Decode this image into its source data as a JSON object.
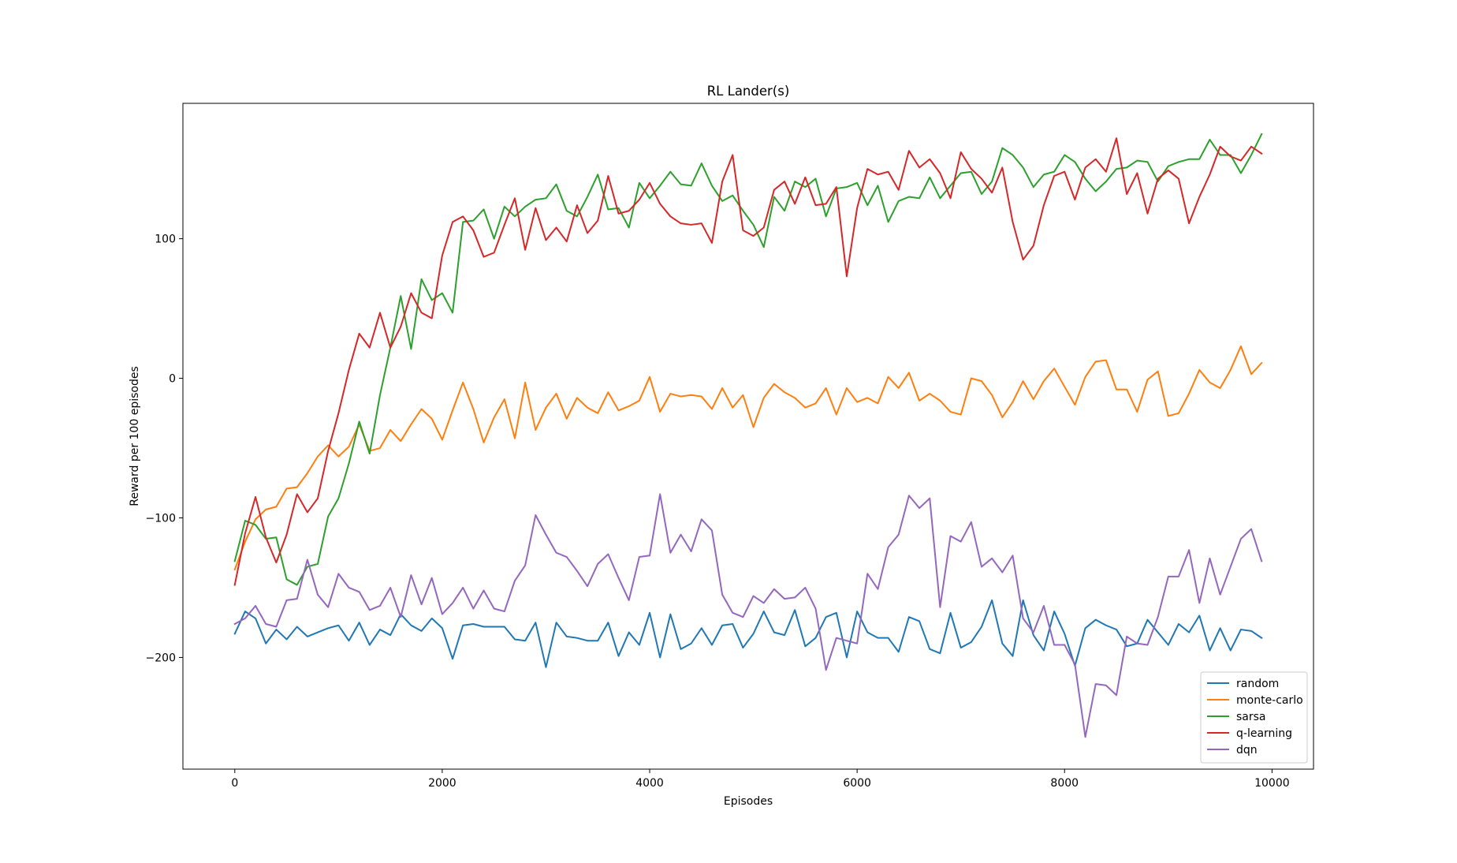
{
  "chart_data": {
    "type": "line",
    "title": "RL Lander(s)",
    "xlabel": "Episodes",
    "ylabel": "Reward per 100 episodes",
    "xlim": [
      -500,
      10400
    ],
    "ylim": [
      -280,
      197
    ],
    "xticks": [
      0,
      2000,
      4000,
      6000,
      8000,
      10000
    ],
    "yticks": [
      -200,
      -100,
      0,
      100
    ],
    "grid": false,
    "legend_position": "bottom-right",
    "x": [
      0,
      100,
      200,
      300,
      400,
      500,
      600,
      700,
      800,
      900,
      1000,
      1100,
      1200,
      1300,
      1400,
      1500,
      1600,
      1700,
      1800,
      1900,
      2000,
      2100,
      2200,
      2300,
      2400,
      2500,
      2600,
      2700,
      2800,
      2900,
      3000,
      3100,
      3200,
      3300,
      3400,
      3500,
      3600,
      3700,
      3800,
      3900,
      4000,
      4100,
      4200,
      4300,
      4400,
      4500,
      4600,
      4700,
      4800,
      4900,
      5000,
      5100,
      5200,
      5300,
      5400,
      5500,
      5600,
      5700,
      5800,
      5900,
      6000,
      6100,
      6200,
      6300,
      6400,
      6500,
      6600,
      6700,
      6800,
      6900,
      7000,
      7100,
      7200,
      7300,
      7400,
      7500,
      7600,
      7700,
      7800,
      7900,
      8000,
      8100,
      8200,
      8300,
      8400,
      8500,
      8600,
      8700,
      8800,
      8900,
      9000,
      9100,
      9200,
      9300,
      9400,
      9500,
      9600,
      9700,
      9800,
      9900
    ],
    "series": [
      {
        "name": "random",
        "color": "#1f77b4",
        "values": [
          -183,
          -167,
          -172,
          -190,
          -180,
          -187,
          -178,
          -185,
          -182,
          -179,
          -177,
          -188,
          -175,
          -191,
          -180,
          -184,
          -169,
          -177,
          -181,
          -172,
          -179,
          -201,
          -177,
          -176,
          -178,
          -178,
          -178,
          -187,
          -188,
          -175,
          -207,
          -175,
          -185,
          -186,
          -188,
          -188,
          -175,
          -199,
          -182,
          -191,
          -168,
          -200,
          -169,
          -194,
          -190,
          -179,
          -191,
          -177,
          -176,
          -193,
          -183,
          -167,
          -182,
          -184,
          -166,
          -192,
          -186,
          -171,
          -168,
          -200,
          -167,
          -182,
          -186,
          -186,
          -196,
          -171,
          -174,
          -194,
          -197,
          -168,
          -193,
          -189,
          -178,
          -159,
          -190,
          -199,
          -159,
          -184,
          -195,
          -167,
          -183,
          -206,
          -179,
          -173,
          -177,
          -180,
          -192,
          -190,
          -173,
          -182,
          -191,
          -176,
          -182,
          -170,
          -195,
          -179,
          -195,
          -180,
          -181,
          -186
        ]
      },
      {
        "name": "monte-carlo",
        "color": "#ff7f0e",
        "values": [
          -137,
          -117,
          -101,
          -94,
          -92,
          -79,
          -78,
          -68,
          -56,
          -48,
          -56,
          -49,
          -33,
          -52,
          -50,
          -37,
          -45,
          -33,
          -22,
          -29,
          -44,
          -23,
          -3,
          -22,
          -46,
          -28,
          -15,
          -43,
          -3,
          -37,
          -21,
          -11,
          -29,
          -14,
          -21,
          -25,
          -10,
          -23,
          -20,
          -16,
          1,
          -24,
          -11,
          -13,
          -12,
          -13,
          -22,
          -7,
          -21,
          -12,
          -35,
          -14,
          -4,
          -10,
          -14,
          -21,
          -18,
          -7,
          -26,
          -7,
          -17,
          -14,
          -18,
          1,
          -7,
          4,
          -16,
          -11,
          -16,
          -24,
          -26,
          0,
          -2,
          -12,
          -28,
          -17,
          -2,
          -15,
          -2,
          7,
          -6,
          -19,
          1,
          12,
          13,
          -8,
          -8,
          -24,
          -1,
          5,
          -27,
          -25,
          -11,
          6,
          -3,
          -7,
          6,
          23,
          3,
          11
        ]
      },
      {
        "name": "sarsa",
        "color": "#2ca02c",
        "values": [
          -131,
          -102,
          -105,
          -115,
          -114,
          -144,
          -148,
          -135,
          -133,
          -99,
          -86,
          -61,
          -31,
          -54,
          -12,
          22,
          59,
          21,
          71,
          56,
          61,
          47,
          112,
          113,
          121,
          100,
          123,
          116,
          123,
          128,
          129,
          139,
          120,
          116,
          130,
          146,
          121,
          122,
          108,
          140,
          129,
          138,
          148,
          139,
          138,
          154,
          138,
          127,
          131,
          120,
          110,
          94,
          130,
          120,
          141,
          137,
          143,
          116,
          136,
          137,
          140,
          124,
          138,
          112,
          127,
          130,
          129,
          144,
          129,
          138,
          147,
          148,
          132,
          141,
          165,
          160,
          151,
          137,
          146,
          148,
          160,
          155,
          143,
          134,
          141,
          150,
          151,
          156,
          155,
          141,
          152,
          155,
          157,
          157,
          171,
          160,
          160,
          147,
          160,
          175
        ]
      },
      {
        "name": "q-learning",
        "color": "#d62728",
        "values": [
          -148,
          -111,
          -85,
          -114,
          -132,
          -112,
          -83,
          -96,
          -86,
          -52,
          -25,
          6,
          32,
          22,
          47,
          22,
          37,
          61,
          47,
          43,
          88,
          112,
          116,
          106,
          87,
          90,
          110,
          129,
          92,
          122,
          99,
          108,
          98,
          124,
          104,
          113,
          145,
          118,
          120,
          128,
          140,
          125,
          116,
          111,
          110,
          111,
          97,
          141,
          160,
          106,
          102,
          108,
          135,
          141,
          125,
          144,
          124,
          125,
          137,
          73,
          122,
          150,
          146,
          148,
          135,
          163,
          151,
          157,
          147,
          129,
          162,
          150,
          143,
          133,
          151,
          112,
          85,
          95,
          124,
          145,
          148,
          128,
          151,
          157,
          148,
          172,
          132,
          147,
          118,
          143,
          149,
          143,
          111,
          130,
          146,
          166,
          159,
          156,
          166,
          161
        ]
      },
      {
        "name": "dqn",
        "color": "#9467bd",
        "values": [
          -176,
          -172,
          -163,
          -176,
          -178,
          -159,
          -158,
          -130,
          -155,
          -164,
          -140,
          -150,
          -153,
          -166,
          -163,
          -150,
          -171,
          -141,
          -162,
          -143,
          -169,
          -161,
          -150,
          -165,
          -152,
          -165,
          -167,
          -145,
          -134,
          -98,
          -112,
          -125,
          -128,
          -138,
          -149,
          -133,
          -126,
          -143,
          -159,
          -128,
          -127,
          -83,
          -125,
          -112,
          -124,
          -101,
          -109,
          -155,
          -168,
          -171,
          -156,
          -161,
          -151,
          -158,
          -157,
          -150,
          -165,
          -209,
          -186,
          -188,
          -190,
          -140,
          -151,
          -121,
          -112,
          -84,
          -93,
          -86,
          -164,
          -113,
          -117,
          -103,
          -135,
          -129,
          -139,
          -127,
          -172,
          -182,
          -163,
          -191,
          -191,
          -205,
          -257,
          -219,
          -220,
          -227,
          -185,
          -190,
          -191,
          -171,
          -142,
          -142,
          -123,
          -161,
          -129,
          -155,
          -135,
          -115,
          -108,
          -131
        ]
      }
    ]
  }
}
